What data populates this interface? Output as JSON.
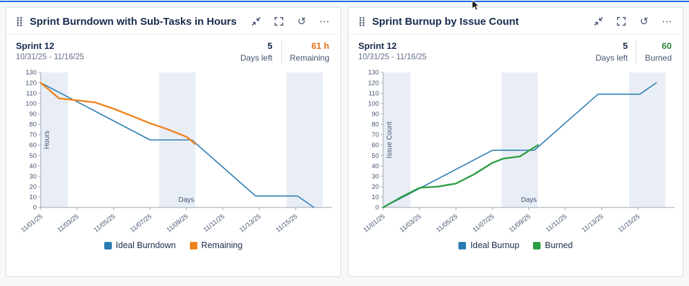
{
  "page": {
    "accent_color": "#1868DB",
    "background": "#F7F8F9"
  },
  "icons": {
    "refresh": "↺",
    "more": "⋯"
  },
  "cards": [
    {
      "title": "Sprint Burndown with Sub-Tasks in Hours",
      "sprint_name": "Sprint 12",
      "sprint_range": "10/31/25 - 11/16/25",
      "days_left_value": "5",
      "days_left_label": "Days left",
      "metric_value": "61 h",
      "metric_label": "Remaining",
      "metric_color": "#E8731A"
    },
    {
      "title": "Sprint Burnup by Issue Count",
      "sprint_name": "Sprint 12",
      "sprint_range": "10/31/25 - 11/16/25",
      "days_left_value": "5",
      "days_left_label": "Days left",
      "metric_value": "60",
      "metric_label": "Burned",
      "metric_color": "#2E8A44"
    }
  ],
  "chart_data": [
    {
      "type": "line",
      "title": "Sprint Burndown with Sub-Tasks in Hours",
      "xlabel": "Days",
      "ylabel": "Hours",
      "ylim": [
        0,
        130
      ],
      "ytick_step": 10,
      "x_domain": [
        0,
        16
      ],
      "x_ticks": [
        [
          0,
          "11/01/25"
        ],
        [
          2,
          "11/03/25"
        ],
        [
          4,
          "11/05/25"
        ],
        [
          6,
          "11/07/25"
        ],
        [
          8,
          "11/09/25"
        ],
        [
          10,
          "11/11/25"
        ],
        [
          12,
          "11/13/25"
        ],
        [
          14,
          "11/15/25"
        ]
      ],
      "weekend_bands": [
        [
          -0.5,
          1.5
        ],
        [
          6.5,
          8.5
        ],
        [
          13.5,
          15.5
        ]
      ],
      "band_color": "#E9EEF6",
      "grid": false,
      "legend_position": "bottom",
      "series": [
        {
          "name": "Ideal Burndown",
          "color": "#2B7CB3",
          "width": 1.6,
          "points": [
            [
              0,
              120
            ],
            [
              6,
              65
            ],
            [
              8.3,
              65
            ],
            [
              11.8,
              11
            ],
            [
              14.1,
              11
            ],
            [
              15,
              0
            ]
          ]
        },
        {
          "name": "Remaining",
          "color": "#F0821E",
          "width": 2.4,
          "points": [
            [
              0,
              120
            ],
            [
              1,
              105
            ],
            [
              2,
              103
            ],
            [
              3,
              101
            ],
            [
              4,
              95
            ],
            [
              5,
              88
            ],
            [
              6,
              81
            ],
            [
              7,
              75
            ],
            [
              8,
              68
            ],
            [
              8.5,
              61
            ]
          ]
        }
      ]
    },
    {
      "type": "line",
      "title": "Sprint Burnup by Issue Count",
      "xlabel": "Days",
      "ylabel": "Issue Count",
      "ylim": [
        0,
        130
      ],
      "ytick_step": 10,
      "x_domain": [
        0,
        16
      ],
      "x_ticks": [
        [
          0,
          "11/01/25"
        ],
        [
          2,
          "11/03/25"
        ],
        [
          4,
          "11/05/25"
        ],
        [
          6,
          "11/07/25"
        ],
        [
          8,
          "11/09/25"
        ],
        [
          10,
          "11/11/25"
        ],
        [
          12,
          "11/13/25"
        ],
        [
          14,
          "11/15/25"
        ]
      ],
      "weekend_bands": [
        [
          -0.5,
          1.5
        ],
        [
          6.5,
          8.5
        ],
        [
          13.5,
          15.5
        ]
      ],
      "band_color": "#E9EEF6",
      "grid": false,
      "legend_position": "bottom",
      "series": [
        {
          "name": "Ideal Burnup",
          "color": "#2B7CB3",
          "width": 1.6,
          "points": [
            [
              0,
              0
            ],
            [
              6,
              55
            ],
            [
              8.3,
              55
            ],
            [
              11.8,
              109
            ],
            [
              14.1,
              109
            ],
            [
              15,
              120
            ]
          ]
        },
        {
          "name": "Burned",
          "color": "#2E9E44",
          "width": 2.4,
          "points": [
            [
              0,
              0
            ],
            [
              1,
              10
            ],
            [
              2,
              19
            ],
            [
              3,
              20
            ],
            [
              4,
              23
            ],
            [
              5,
              32
            ],
            [
              6,
              43
            ],
            [
              6.6,
              47
            ],
            [
              7.5,
              49
            ],
            [
              8.5,
              60
            ]
          ]
        }
      ]
    }
  ]
}
